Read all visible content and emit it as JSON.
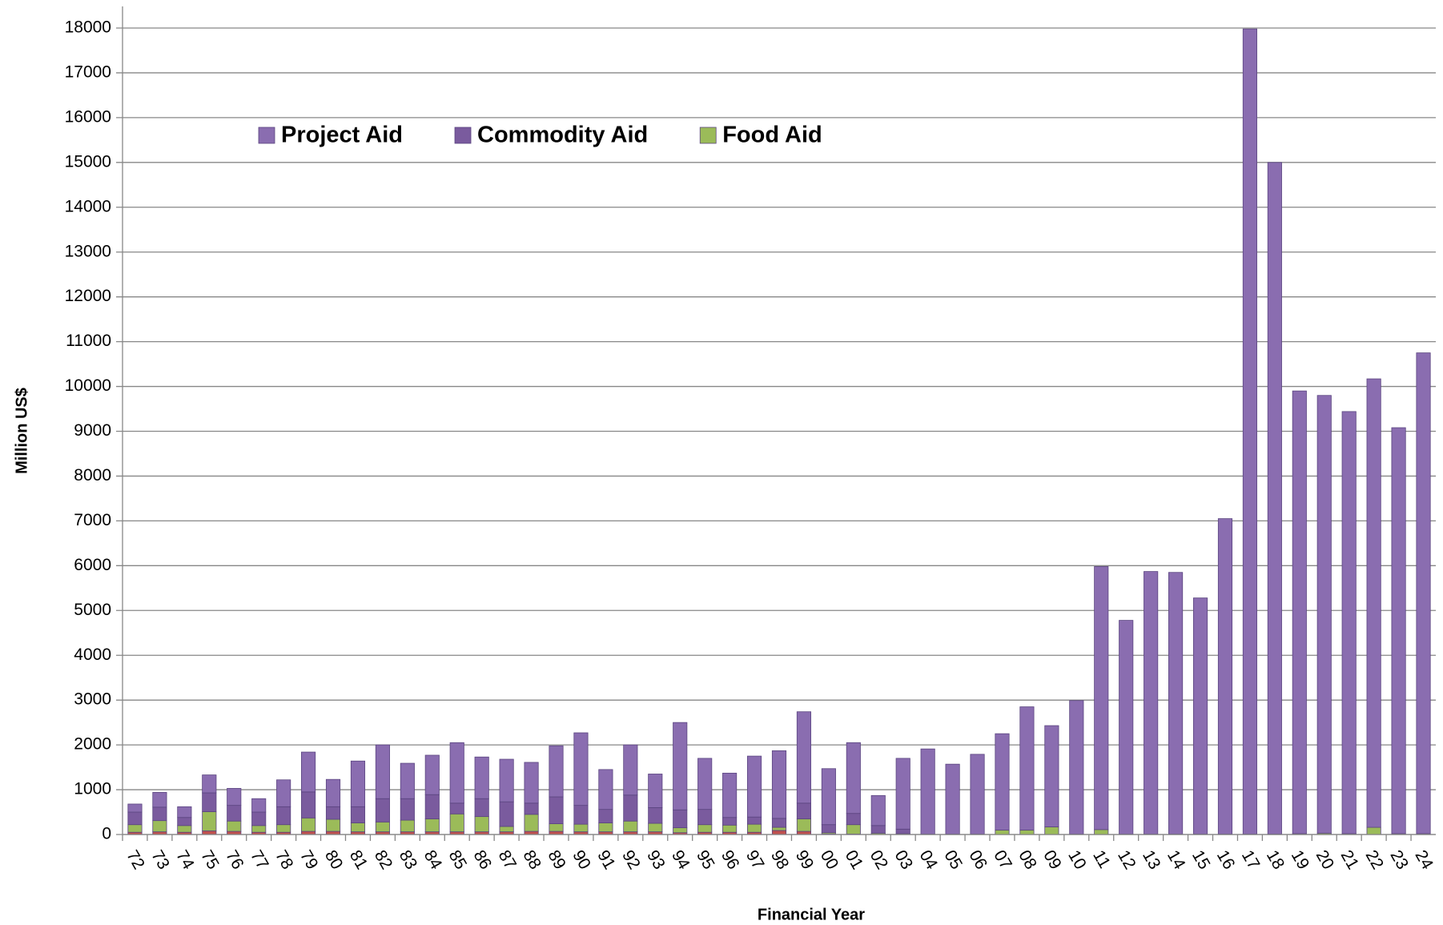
{
  "chart_data": {
    "type": "stacked_bar",
    "xlabel": "Financial Year",
    "ylabel": "Million US$",
    "categories": [
      "72",
      "73",
      "74",
      "75",
      "76",
      "77",
      "78",
      "79",
      "80",
      "81",
      "82",
      "83",
      "84",
      "85",
      "86",
      "87",
      "88",
      "89",
      "90",
      "91",
      "92",
      "93",
      "94",
      "95",
      "96",
      "97",
      "98",
      "99",
      "00",
      "01",
      "02",
      "03",
      "04",
      "05",
      "06",
      "07",
      "08",
      "09",
      "10",
      "11",
      "12",
      "13",
      "14",
      "15",
      "16",
      "17",
      "18",
      "19",
      "20",
      "21",
      "22",
      "23",
      "24"
    ],
    "series": [
      {
        "color": "#c0504d",
        "values": [
          50,
          60,
          50,
          80,
          70,
          50,
          50,
          70,
          70,
          60,
          60,
          60,
          60,
          60,
          60,
          60,
          70,
          70,
          60,
          60,
          60,
          60,
          40,
          50,
          50,
          50,
          90,
          70,
          10,
          10,
          0,
          0,
          0,
          0,
          0,
          0,
          0,
          0,
          0,
          0,
          0,
          0,
          0,
          0,
          0,
          0,
          0,
          0,
          0,
          0,
          0,
          0,
          0
        ]
      },
      {
        "name": "Food Aid",
        "color": "#9bbb59",
        "values": [
          170,
          250,
          150,
          430,
          230,
          150,
          170,
          300,
          270,
          200,
          220,
          260,
          290,
          400,
          340,
          120,
          380,
          170,
          170,
          200,
          240,
          190,
          110,
          170,
          160,
          180,
          70,
          280,
          30,
          210,
          30,
          20,
          10,
          10,
          10,
          100,
          100,
          170,
          10,
          110,
          10,
          10,
          10,
          10,
          10,
          10,
          10,
          20,
          30,
          20,
          160,
          20,
          20
        ]
      },
      {
        "name": "Commodity Aid",
        "color": "#7a5b9e",
        "values": [
          280,
          300,
          180,
          420,
          350,
          300,
          400,
          580,
          280,
          360,
          520,
          480,
          540,
          240,
          400,
          550,
          250,
          600,
          420,
          300,
          580,
          350,
          400,
          340,
          170,
          160,
          200,
          350,
          180,
          250,
          170,
          100,
          0,
          0,
          0,
          0,
          0,
          0,
          0,
          0,
          0,
          0,
          0,
          0,
          0,
          0,
          0,
          0,
          0,
          0,
          0,
          0,
          0
        ]
      },
      {
        "name": "Project Aid",
        "color": "#8a6db0",
        "values": [
          180,
          330,
          240,
          400,
          380,
          300,
          600,
          890,
          610,
          1020,
          1200,
          790,
          880,
          1350,
          930,
          950,
          910,
          1140,
          1620,
          890,
          1120,
          750,
          1950,
          1140,
          990,
          1360,
          1510,
          2040,
          1250,
          1580,
          670,
          1580,
          1900,
          1560,
          1780,
          2150,
          2750,
          2260,
          2980,
          5870,
          4770,
          5860,
          5840,
          5270,
          7040,
          17970,
          14990,
          9880,
          9770,
          9420,
          10010,
          9060,
          10730
        ]
      }
    ],
    "ylim": [
      0,
      18000
    ],
    "yticks": [
      0,
      1000,
      2000,
      3000,
      4000,
      5000,
      6000,
      7000,
      8000,
      9000,
      10000,
      11000,
      12000,
      13000,
      14000,
      15000,
      16000,
      17000,
      18000
    ],
    "grid": true
  }
}
